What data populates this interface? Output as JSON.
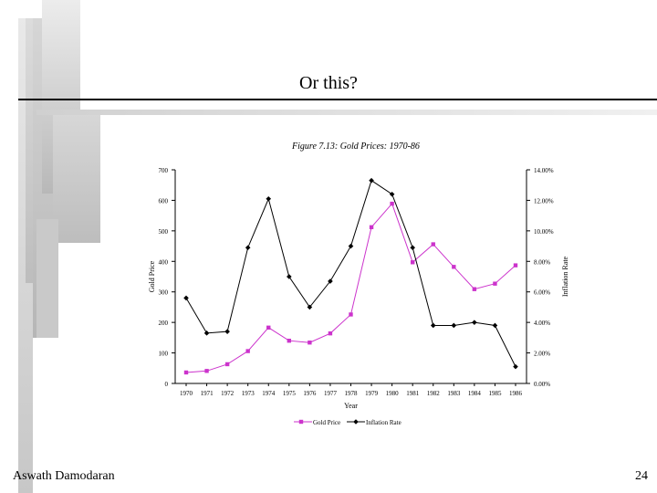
{
  "slide": {
    "title": "Or this?",
    "footer_author": "Aswath Damodaran",
    "page_number": "24"
  },
  "colors": {
    "gold_price": "#cc33cc",
    "inflation_rate": "#000000",
    "decoration_gray": "#b4b4b4"
  },
  "chart_data": {
    "type": "line",
    "title": "Figure 7.13: Gold Prices: 1970-86",
    "xlabel": "Year",
    "ylabel_left": "Gold Price",
    "ylabel_right": "Inflation Rate",
    "categories": [
      "1970",
      "1971",
      "1972",
      "1973",
      "1974",
      "1975",
      "1976",
      "1977",
      "1978",
      "1979",
      "1980",
      "1981",
      "1982",
      "1983",
      "1984",
      "1985",
      "1986"
    ],
    "ylim_left": [
      0,
      700
    ],
    "yticks_left": [
      "0",
      "100",
      "200",
      "300",
      "400",
      "500",
      "600",
      "700"
    ],
    "ylim_right": [
      0,
      14
    ],
    "yticks_right": [
      "0.00%",
      "2.00%",
      "4.00%",
      "6.00%",
      "8.00%",
      "10.00%",
      "12.00%",
      "14.00%"
    ],
    "series": [
      {
        "name": "Gold Price",
        "axis": "left",
        "marker": "square",
        "values": [
          36,
          41,
          63,
          106,
          183,
          140,
          134,
          164,
          226,
          512,
          589,
          397,
          456,
          382,
          309,
          327,
          387
        ]
      },
      {
        "name": "Inflation Rate",
        "axis": "right",
        "marker": "diamond",
        "values": [
          5.6,
          3.3,
          3.4,
          8.9,
          12.1,
          7.0,
          5.0,
          6.7,
          9.0,
          13.3,
          12.4,
          8.9,
          3.8,
          3.8,
          4.0,
          3.8,
          1.1
        ]
      }
    ],
    "grid": false,
    "legend": "bottom"
  }
}
